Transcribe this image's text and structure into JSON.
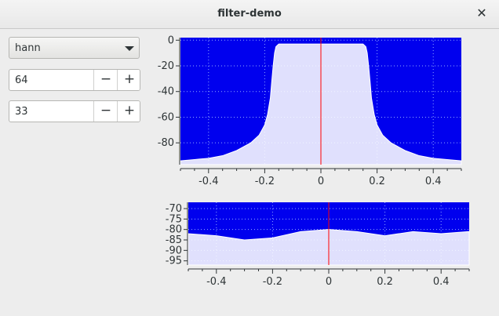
{
  "window": {
    "title": "filter-demo",
    "close_icon": "close-icon"
  },
  "controls": {
    "window_type": {
      "selected": "hann",
      "icon": "chevron-down-icon"
    },
    "taps": {
      "value": "64",
      "minus": "−",
      "plus": "+"
    },
    "cutoff": {
      "value": "33",
      "minus": "−",
      "plus": "+"
    }
  },
  "colors": {
    "plot_background": "#0000ee",
    "trace": "#ffffff",
    "center_line": "#ff0000"
  },
  "chart_data": [
    {
      "type": "area",
      "description_role": "frequency response (dB)",
      "title": "",
      "xlabel": "",
      "ylabel": "",
      "xlim": [
        -0.5,
        0.5
      ],
      "ylim": [
        -97,
        2
      ],
      "xticks": [
        -0.4,
        -0.2,
        0,
        0.2,
        0.4
      ],
      "xtick_labels": [
        "-0.4",
        "-0.2",
        "0",
        "0.2",
        "0.4"
      ],
      "yticks": [
        0,
        -20,
        -40,
        -60,
        -80
      ],
      "ytick_labels": [
        "0",
        "-20",
        "-40",
        "-60",
        "-80"
      ],
      "grid": true,
      "center_line_x": 0,
      "x": [
        -0.5,
        -0.45,
        -0.4,
        -0.35,
        -0.3,
        -0.25,
        -0.22,
        -0.2,
        -0.19,
        -0.18,
        -0.175,
        -0.17,
        -0.165,
        -0.16,
        -0.15,
        -0.1,
        0,
        0.1,
        0.15,
        0.16,
        0.165,
        0.17,
        0.175,
        0.18,
        0.19,
        0.2,
        0.22,
        0.25,
        0.3,
        0.35,
        0.4,
        0.45,
        0.5
      ],
      "y": [
        -94,
        -93,
        -92,
        -90,
        -86,
        -80,
        -74,
        -66,
        -58,
        -45,
        -32,
        -20,
        -10,
        -5,
        -3,
        -3,
        -3,
        -3,
        -3,
        -5,
        -10,
        -20,
        -32,
        -45,
        -58,
        -66,
        -74,
        -80,
        -86,
        -90,
        -92,
        -93,
        -94
      ]
    },
    {
      "type": "area",
      "description_role": "stopband detail (dB)",
      "title": "",
      "xlabel": "",
      "ylabel": "",
      "xlim": [
        -0.5,
        0.5
      ],
      "ylim": [
        -97,
        -67
      ],
      "xticks": [
        -0.4,
        -0.2,
        0,
        0.2,
        0.4
      ],
      "xtick_labels": [
        "-0.4",
        "-0.2",
        "0",
        "0.2",
        "0.4"
      ],
      "yticks": [
        -70,
        -75,
        -80,
        -85,
        -90,
        -95
      ],
      "ytick_labels": [
        "-70",
        "-75",
        "-80",
        "-85",
        "-90",
        "-95"
      ],
      "grid": true,
      "center_line_x": 0,
      "x": [
        -0.5,
        -0.4,
        -0.3,
        -0.2,
        -0.1,
        0,
        0.1,
        0.2,
        0.3,
        0.4,
        0.5
      ],
      "y": [
        -82,
        -83,
        -85,
        -84,
        -81,
        -80,
        -81,
        -83,
        -81,
        -82,
        -81
      ]
    }
  ]
}
